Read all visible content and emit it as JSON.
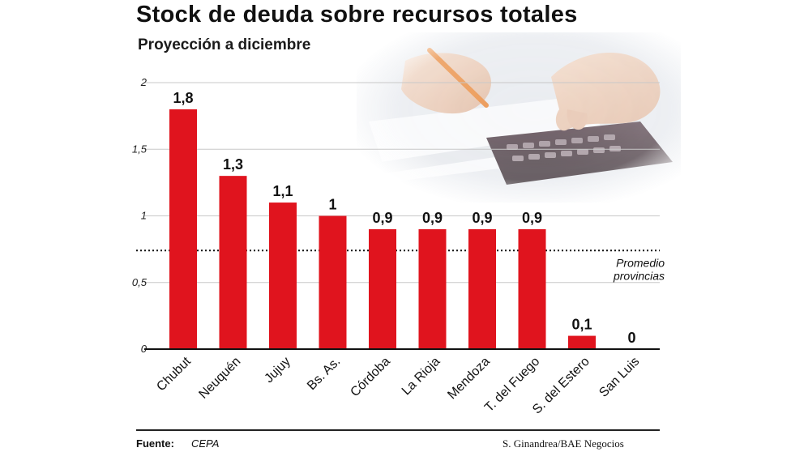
{
  "header": {
    "title": "Stock de deuda sobre recursos totales",
    "subtitle": "Proyección a diciembre"
  },
  "chart_data": {
    "type": "bar",
    "title": "Stock de deuda sobre recursos totales",
    "subtitle": "Proyección a diciembre",
    "categories": [
      "Chubut",
      "Neuquén",
      "Jujuy",
      "Bs. As.",
      "Córdoba",
      "La Rioja",
      "Mendoza",
      "T. del Fuego",
      "S. del Estero",
      "San Luis"
    ],
    "values": [
      1.8,
      1.3,
      1.1,
      1,
      0.9,
      0.9,
      0.9,
      0.9,
      0.1,
      0
    ],
    "value_labels": [
      "1,8",
      "1,3",
      "1,1",
      "1",
      "0,9",
      "0,9",
      "0,9",
      "0,9",
      "0,1",
      "0"
    ],
    "yticks": [
      0,
      0.5,
      1,
      1.5,
      2
    ],
    "ytick_labels": [
      "0",
      "0,5",
      "1",
      "1,5",
      "2"
    ],
    "ylim": [
      0,
      2
    ],
    "xlabel": "",
    "ylabel": "",
    "grid": true,
    "bar_color": "#e0141e",
    "reference_line": {
      "value": 0.74,
      "label_lines": [
        "Promedio",
        "provincias"
      ]
    }
  },
  "footer": {
    "source_label": "Fuente:",
    "source_value": "CEPA",
    "credit": "S. Ginandrea/BAE Negocios"
  }
}
